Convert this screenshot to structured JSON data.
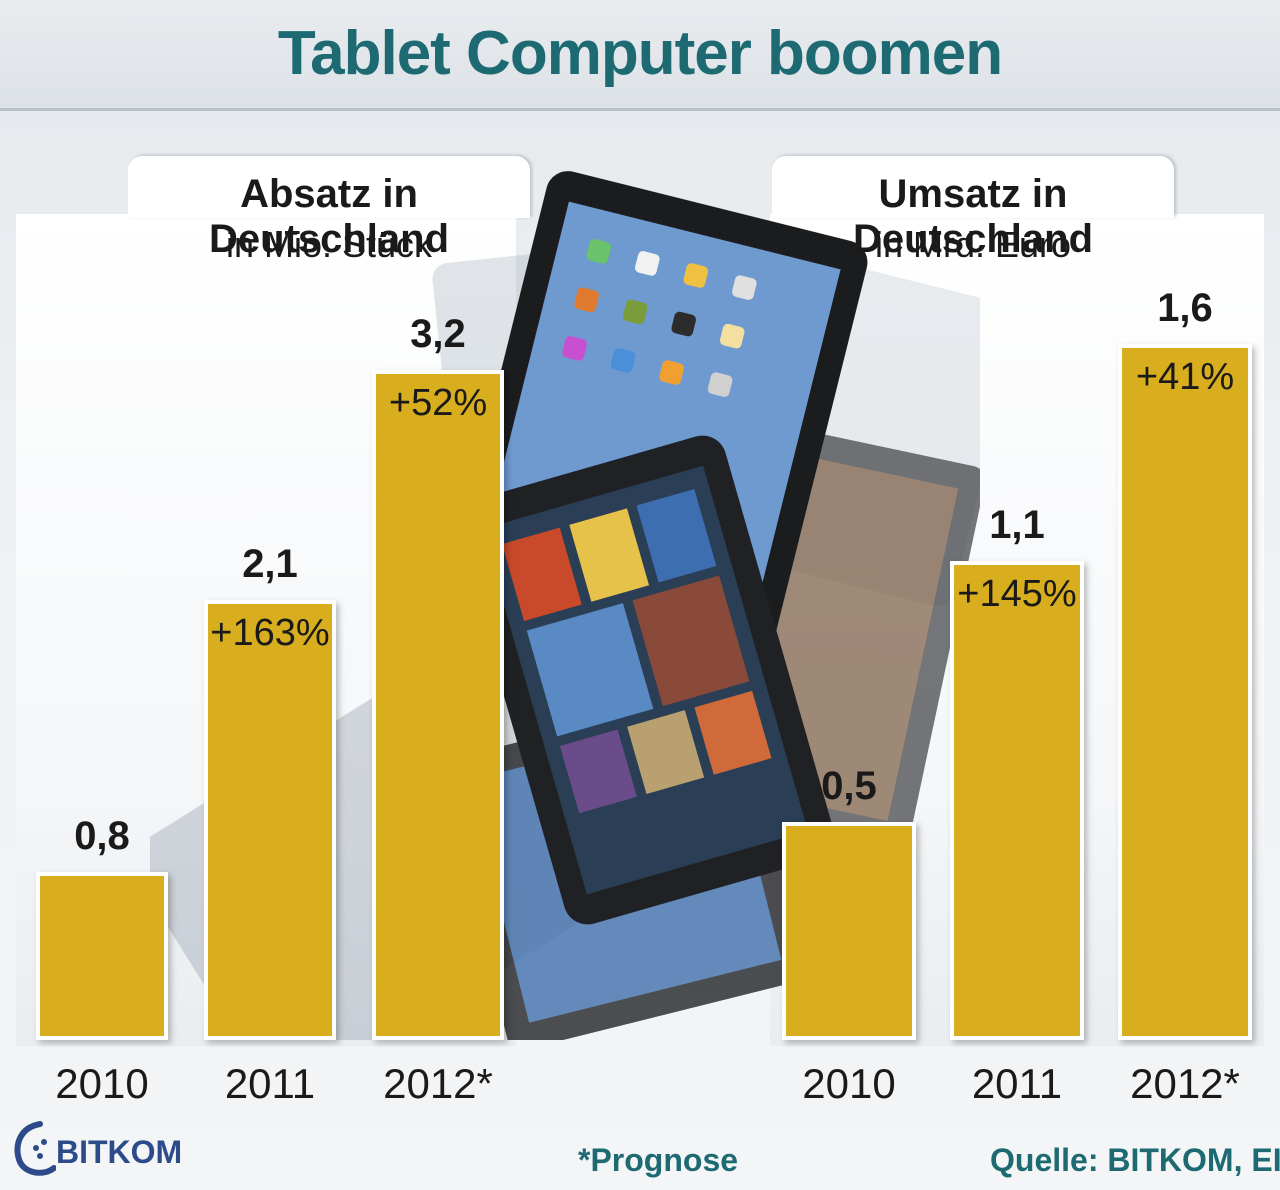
{
  "title": "Tablet Computer boomen",
  "chart_data": [
    {
      "type": "bar",
      "title": "Absatz in Deutschland",
      "subtitle": "in Mio. Stück",
      "categories": [
        "2010",
        "2011",
        "2012*"
      ],
      "values": [
        0.8,
        2.1,
        3.2
      ],
      "value_labels": [
        "0,8",
        "2,1",
        "3,2"
      ],
      "change_labels": [
        "",
        "+163%",
        "+52%"
      ],
      "ylim": [
        0,
        3.2
      ],
      "grid": false,
      "color": "#d9ae1e"
    },
    {
      "type": "bar",
      "title": "Umsatz in Deutschland",
      "subtitle": "in Mrd. Euro",
      "categories": [
        "2010",
        "2011",
        "2012*"
      ],
      "values": [
        0.5,
        1.1,
        1.6
      ],
      "value_labels": [
        "0,5",
        "1,1",
        "1,6"
      ],
      "change_labels": [
        "",
        "+145%",
        "+41%"
      ],
      "ylim": [
        0,
        1.6
      ],
      "grid": false,
      "color": "#d9ae1e"
    }
  ],
  "footnote": "*Prognose",
  "source": "Quelle: BITKOM, EITO",
  "logo": {
    "text": "BITKOM",
    "icon": "bitkom-logo-icon"
  },
  "colors": {
    "title": "#1d6a72",
    "bar": "#d9ae1e",
    "footer": "#1d6a72",
    "logo": "#2d4b8a"
  }
}
